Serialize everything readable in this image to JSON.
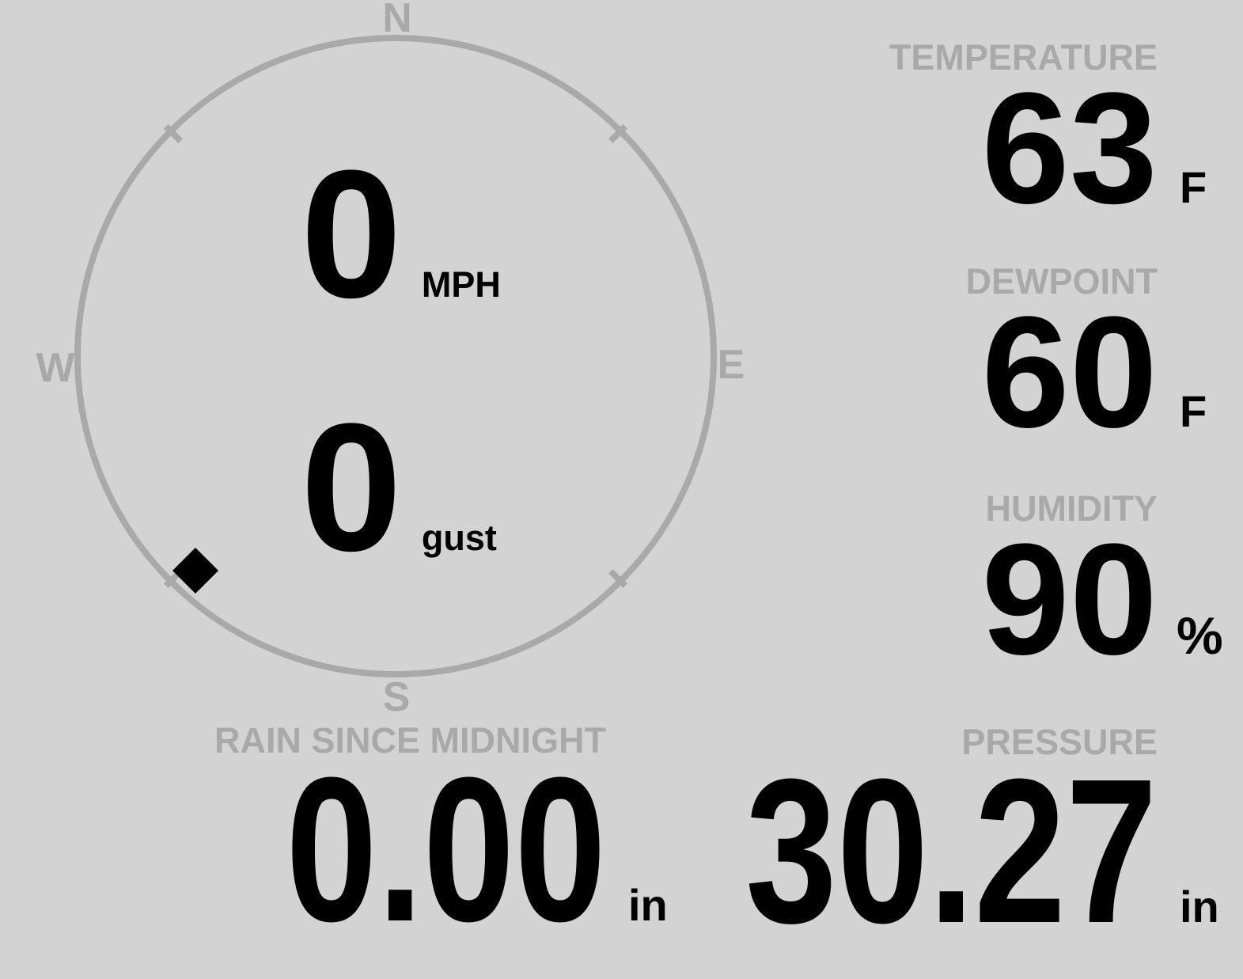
{
  "theme": {
    "background": "#d3d3d3",
    "muted": "#a9a9a9",
    "text": "#000000"
  },
  "wind": {
    "compass": {
      "labels": {
        "north": "N",
        "east": "E",
        "south": "S",
        "west": "W"
      },
      "direction_deg": 223
    },
    "speed": {
      "value": "0",
      "unit": "MPH"
    },
    "gust": {
      "value": "0",
      "unit": "gust"
    }
  },
  "metrics": {
    "temperature": {
      "label": "TEMPERATURE",
      "value": "63",
      "unit": "F"
    },
    "dewpoint": {
      "label": "DEWPOINT",
      "value": "60",
      "unit": "F"
    },
    "humidity": {
      "label": "HUMIDITY",
      "value": "90",
      "unit": "%"
    },
    "rain_since_midnight": {
      "label": "RAIN SINCE MIDNIGHT",
      "value": "0.00",
      "unit": "in"
    },
    "pressure": {
      "label": "PRESSURE",
      "value": "30.27",
      "unit": "in"
    }
  }
}
